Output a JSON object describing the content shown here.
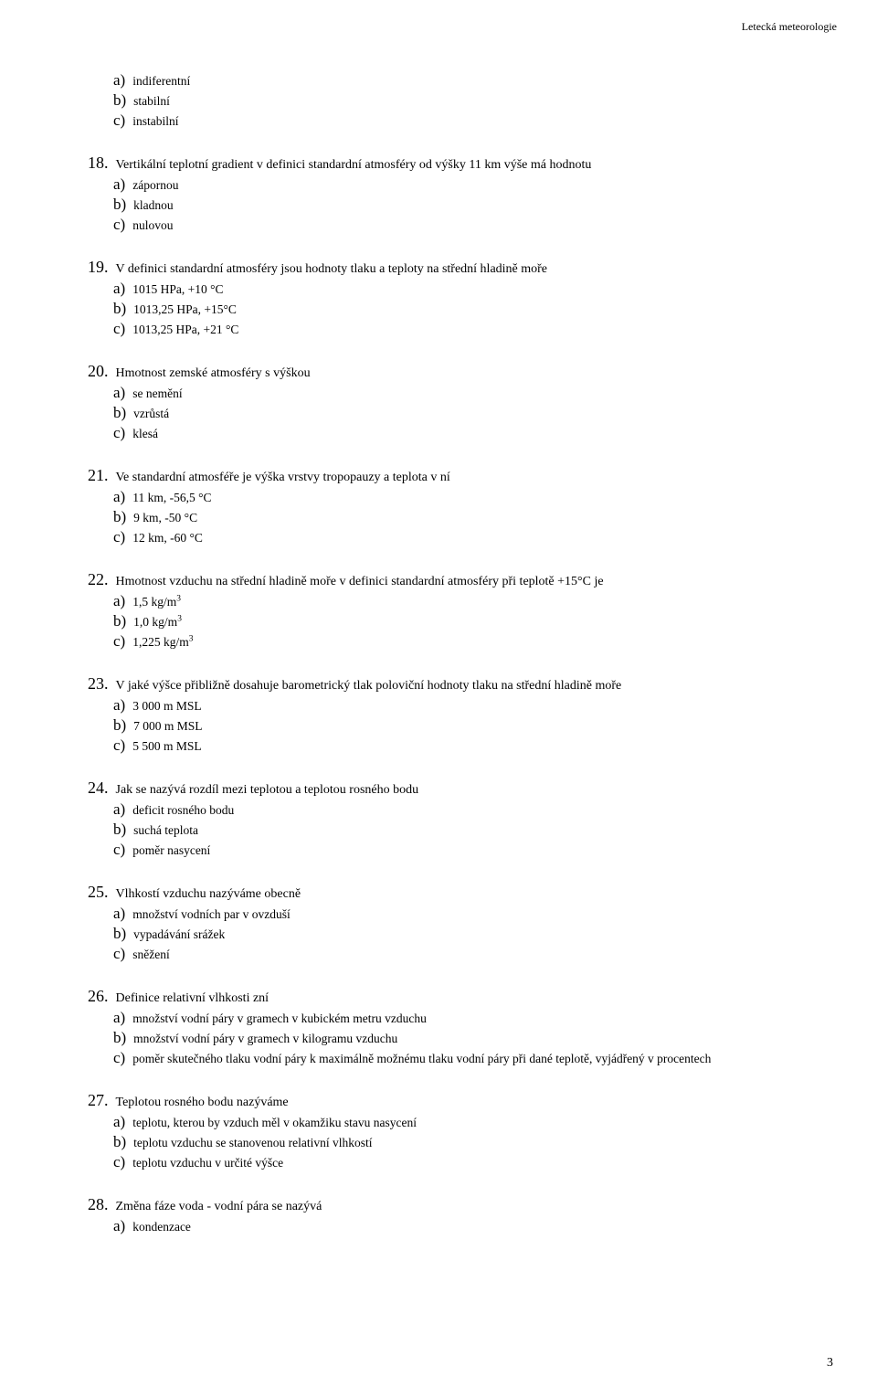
{
  "header": {
    "right_text": "Letecká meteorologie"
  },
  "orphan": {
    "a": "indiferentní",
    "b": "stabilní",
    "c": "instabilní"
  },
  "questions": [
    {
      "num": "18",
      "text": "Vertikální teplotní gradient v definici standardní atmosféry od výšky 11 km výše má hodnotu",
      "a": "zápornou",
      "b": "kladnou",
      "c": "nulovou"
    },
    {
      "num": "19",
      "text": "V definici standardní atmosféry jsou hodnoty tlaku a teploty na střední hladině moře",
      "a": "1015 HPa, +10 °C",
      "b": "1013,25 HPa, +15°C",
      "c": "1013,25 HPa, +21 °C"
    },
    {
      "num": "20",
      "text": "Hmotnost zemské atmosféry s výškou",
      "a": "se nemění",
      "b": "vzrůstá",
      "c": "klesá"
    },
    {
      "num": "21",
      "text": "Ve standardní atmosféře je výška vrstvy tropopauzy a teplota v ní",
      "a": "11 km, -56,5 °C",
      "b": "9 km, -50 °C",
      "c": "12 km, -60 °C"
    },
    {
      "num": "22",
      "text": "Hmotnost vzduchu na střední hladině moře v definici standardní atmosféry při teplotě +15°C je",
      "a": "1,5 kg/m³",
      "b": "1,0 kg/m³",
      "c": "1,225 kg/m³"
    },
    {
      "num": "23",
      "text": "V jaké výšce přibližně dosahuje barometrický tlak poloviční hodnoty tlaku na střední hladině moře",
      "a": "3 000 m MSL",
      "b": "7 000 m MSL",
      "c": "5 500 m MSL"
    },
    {
      "num": "24",
      "text": "Jak se nazývá rozdíl mezi teplotou a teplotou rosného bodu",
      "a": "deficit rosného bodu",
      "b": "suchá teplota",
      "c": "poměr nasycení"
    },
    {
      "num": "25",
      "text": "Vlhkostí vzduchu nazýváme obecně",
      "a": "množství vodních par v ovzduší",
      "b": "vypadávání srážek",
      "c": "sněžení"
    },
    {
      "num": "26",
      "text": "Definice relativní vlhkosti zní",
      "a": "množství vodní páry v gramech v kubickém metru vzduchu",
      "b": "množství vodní páry v gramech v kilogramu vzduchu",
      "c": "poměr skutečného tlaku vodní páry k maximálně možnému tlaku vodní páry při dané teplotě, vyjádřený v procentech"
    },
    {
      "num": "27",
      "text": "Teplotou rosného bodu nazýváme",
      "a": "teplotu, kterou by vzduch měl v okamžiku stavu nasycení",
      "b": "teplotu vzduchu se stanovenou relativní vlhkostí",
      "c": "teplotu vzduchu v určité výšce"
    },
    {
      "num": "28",
      "text": "Změna fáze voda - vodní pára se nazývá",
      "a": "kondenzace",
      "b": "",
      "c": ""
    }
  ],
  "page_number": "3"
}
